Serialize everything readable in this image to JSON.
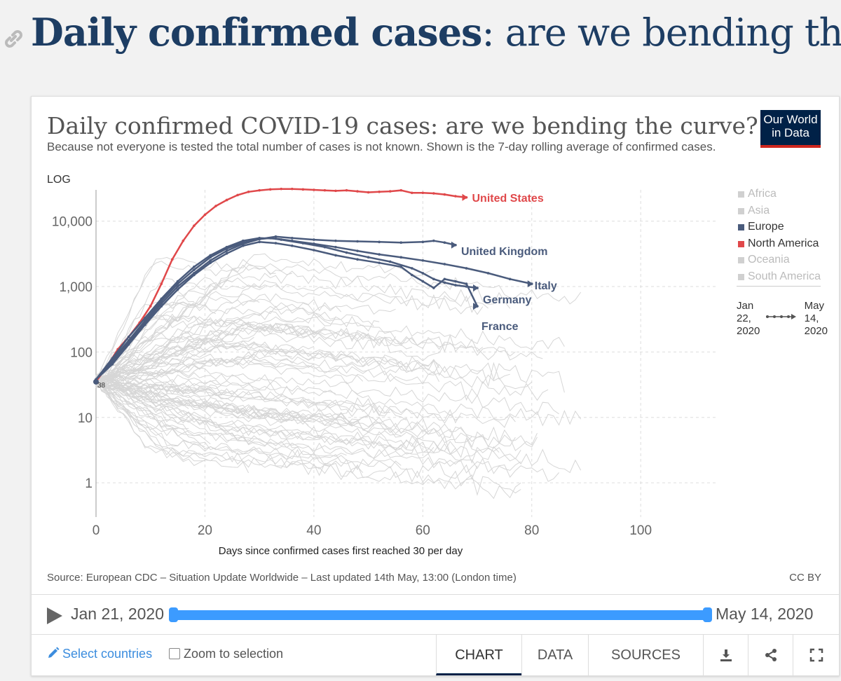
{
  "page": {
    "heading_bold": "Daily confirmed cases",
    "heading_rest": ": are we bending the curve?"
  },
  "card": {
    "title": "Daily confirmed COVID-19 cases: are we bending the curve?",
    "subtitle": "Because not everyone is tested the total number of cases is not known. Shown is the 7-day rolling average of confirmed cases.",
    "logo_line1": "Our World",
    "logo_line2": "in Data",
    "source": "Source: European CDC – Situation Update Worldwide – Last updated 14th May, 13:00 (London time)",
    "license": "CC BY"
  },
  "legend": {
    "items": [
      {
        "label": "Africa",
        "color": "#d0d0d0"
      },
      {
        "label": "Asia",
        "color": "#d0d0d0"
      },
      {
        "label": "Europe",
        "color": "#4a5b7c"
      },
      {
        "label": "North America",
        "color": "#e0484a"
      },
      {
        "label": "Oceania",
        "color": "#d0d0d0"
      },
      {
        "label": "South America",
        "color": "#d0d0d0"
      }
    ],
    "time_start_lines": [
      "Jan",
      "22,",
      "2020"
    ],
    "time_end_lines": [
      "May",
      "14,",
      "2020"
    ]
  },
  "timeline": {
    "start_label": "Jan 21, 2020",
    "end_label": "May 14, 2020"
  },
  "controls": {
    "select_label": "Select countries",
    "zoom_label": "Zoom to selection",
    "tabs": [
      "CHART",
      "DATA",
      "SOURCES"
    ],
    "active_tab": "CHART"
  },
  "colors": {
    "accent_red": "#e0484a",
    "europe_blue": "#4a5b7c",
    "background_lines": "#d6d6d6",
    "slider_blue": "#3c9bff"
  },
  "chart_data": {
    "type": "line",
    "title": "Daily confirmed COVID-19 cases: are we bending the curve?",
    "xlabel": "Days since confirmed cases first reached 30 per day",
    "ylabel": "",
    "y_scale": "log",
    "scale_label": "LOG",
    "xlim": [
      0,
      114
    ],
    "ylim": [
      0.3,
      30000
    ],
    "x_ticks": [
      0,
      20,
      40,
      60,
      80,
      100
    ],
    "y_ticks": [
      {
        "value": 1,
        "label": "1"
      },
      {
        "value": 10,
        "label": "10"
      },
      {
        "value": 100,
        "label": "100"
      },
      {
        "value": 1000,
        "label": "1,000"
      },
      {
        "value": 10000,
        "label": "10,000"
      }
    ],
    "start_marker_label": "38",
    "grid": true,
    "legend_position": "right",
    "series": [
      {
        "name": "United States",
        "color": "#e0484a",
        "highlight": true,
        "points": [
          [
            0,
            35
          ],
          [
            2,
            60
          ],
          [
            4,
            110
          ],
          [
            6,
            170
          ],
          [
            8,
            280
          ],
          [
            10,
            500
          ],
          [
            12,
            1100
          ],
          [
            14,
            2600
          ],
          [
            16,
            5000
          ],
          [
            18,
            8500
          ],
          [
            20,
            12500
          ],
          [
            22,
            17000
          ],
          [
            24,
            21000
          ],
          [
            26,
            25000
          ],
          [
            28,
            28000
          ],
          [
            30,
            29500
          ],
          [
            32,
            30500
          ],
          [
            34,
            31000
          ],
          [
            36,
            31000
          ],
          [
            38,
            30500
          ],
          [
            40,
            30000
          ],
          [
            42,
            29500
          ],
          [
            44,
            29000
          ],
          [
            46,
            29500
          ],
          [
            48,
            28500
          ],
          [
            50,
            27500
          ],
          [
            52,
            28000
          ],
          [
            54,
            28500
          ],
          [
            56,
            29500
          ],
          [
            58,
            27000
          ],
          [
            60,
            27000
          ],
          [
            62,
            26500
          ],
          [
            64,
            25500
          ],
          [
            66,
            24000
          ],
          [
            68,
            23000
          ]
        ]
      },
      {
        "name": "United Kingdom",
        "color": "#4a5b7c",
        "highlight": true,
        "points": [
          [
            0,
            38
          ],
          [
            3,
            70
          ],
          [
            6,
            140
          ],
          [
            9,
            280
          ],
          [
            12,
            550
          ],
          [
            15,
            1000
          ],
          [
            18,
            1600
          ],
          [
            21,
            2500
          ],
          [
            24,
            3500
          ],
          [
            27,
            4500
          ],
          [
            30,
            5300
          ],
          [
            33,
            5800
          ],
          [
            36,
            5500
          ],
          [
            40,
            5200
          ],
          [
            44,
            5000
          ],
          [
            48,
            4900
          ],
          [
            52,
            4800
          ],
          [
            56,
            4700
          ],
          [
            60,
            4800
          ],
          [
            62,
            5000
          ],
          [
            64,
            4700
          ],
          [
            66,
            4300
          ]
        ]
      },
      {
        "name": "Italy",
        "color": "#4a5b7c",
        "highlight": true,
        "points": [
          [
            0,
            38
          ],
          [
            3,
            80
          ],
          [
            6,
            170
          ],
          [
            9,
            330
          ],
          [
            12,
            650
          ],
          [
            15,
            1200
          ],
          [
            18,
            2000
          ],
          [
            21,
            3000
          ],
          [
            24,
            4000
          ],
          [
            27,
            5000
          ],
          [
            30,
            5500
          ],
          [
            33,
            5400
          ],
          [
            36,
            5000
          ],
          [
            40,
            4500
          ],
          [
            44,
            4000
          ],
          [
            48,
            3500
          ],
          [
            52,
            3100
          ],
          [
            56,
            2800
          ],
          [
            60,
            2500
          ],
          [
            64,
            2200
          ],
          [
            68,
            1900
          ],
          [
            72,
            1600
          ],
          [
            76,
            1300
          ],
          [
            80,
            1100
          ]
        ]
      },
      {
        "name": "Germany",
        "color": "#4a5b7c",
        "highlight": true,
        "points": [
          [
            0,
            38
          ],
          [
            3,
            75
          ],
          [
            6,
            150
          ],
          [
            9,
            300
          ],
          [
            12,
            600
          ],
          [
            15,
            1100
          ],
          [
            18,
            1800
          ],
          [
            21,
            2800
          ],
          [
            24,
            3800
          ],
          [
            27,
            4700
          ],
          [
            30,
            5300
          ],
          [
            32,
            5500
          ],
          [
            34,
            5200
          ],
          [
            38,
            4600
          ],
          [
            42,
            4000
          ],
          [
            46,
            3300
          ],
          [
            50,
            2800
          ],
          [
            54,
            2400
          ],
          [
            58,
            1900
          ],
          [
            60,
            1600
          ],
          [
            62,
            1300
          ],
          [
            64,
            1150
          ],
          [
            66,
            1050
          ],
          [
            68,
            1000
          ],
          [
            70,
            950
          ]
        ]
      },
      {
        "name": "France",
        "color": "#4a5b7c",
        "highlight": true,
        "points": [
          [
            0,
            38
          ],
          [
            3,
            65
          ],
          [
            6,
            130
          ],
          [
            9,
            260
          ],
          [
            12,
            500
          ],
          [
            15,
            900
          ],
          [
            18,
            1500
          ],
          [
            21,
            2300
          ],
          [
            24,
            3200
          ],
          [
            27,
            4200
          ],
          [
            30,
            4800
          ],
          [
            33,
            4600
          ],
          [
            36,
            4200
          ],
          [
            40,
            3600
          ],
          [
            44,
            3000
          ],
          [
            48,
            2600
          ],
          [
            52,
            2300
          ],
          [
            56,
            2000
          ],
          [
            58,
            1500
          ],
          [
            60,
            1200
          ],
          [
            62,
            950
          ],
          [
            64,
            1300
          ],
          [
            66,
            1200
          ],
          [
            68,
            1100
          ],
          [
            70,
            500
          ]
        ]
      }
    ]
  }
}
